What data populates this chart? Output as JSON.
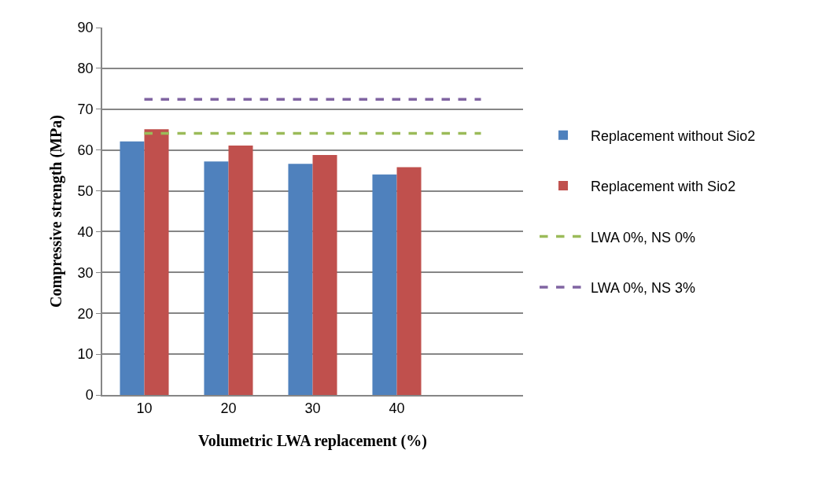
{
  "chart_data": {
    "type": "bar",
    "xlabel": "Volumetric LWA replacement (%)",
    "ylabel": "Compressive strength (MPa)",
    "categories": [
      "10",
      "20",
      "30",
      "40",
      null
    ],
    "series": [
      {
        "name": "Replacement without Sio2",
        "color": "#4f81bd",
        "values": [
          62.1,
          57.2,
          56.6,
          54.0,
          null
        ]
      },
      {
        "name": "Replacement with Sio2",
        "color": "#c0504d",
        "values": [
          65.1,
          61.1,
          58.8,
          55.8,
          null
        ]
      },
      {
        "name": "LWA 0%, NS 0%",
        "type": "line",
        "line_style": "dashed",
        "color": "#9bbb59",
        "values": [
          64.1,
          64.1,
          64.1,
          64.1,
          64.1
        ]
      },
      {
        "name": "LWA 0%, NS 3%",
        "type": "line",
        "line_style": "dashed",
        "color": "#8064a2",
        "values": [
          72.4,
          72.4,
          72.4,
          72.4,
          72.4
        ]
      }
    ],
    "ylim": [
      0,
      90
    ],
    "yticks": [
      0,
      10,
      20,
      30,
      40,
      50,
      60,
      70,
      80,
      90
    ],
    "grid": "y",
    "legend": "right",
    "marker": "none"
  }
}
